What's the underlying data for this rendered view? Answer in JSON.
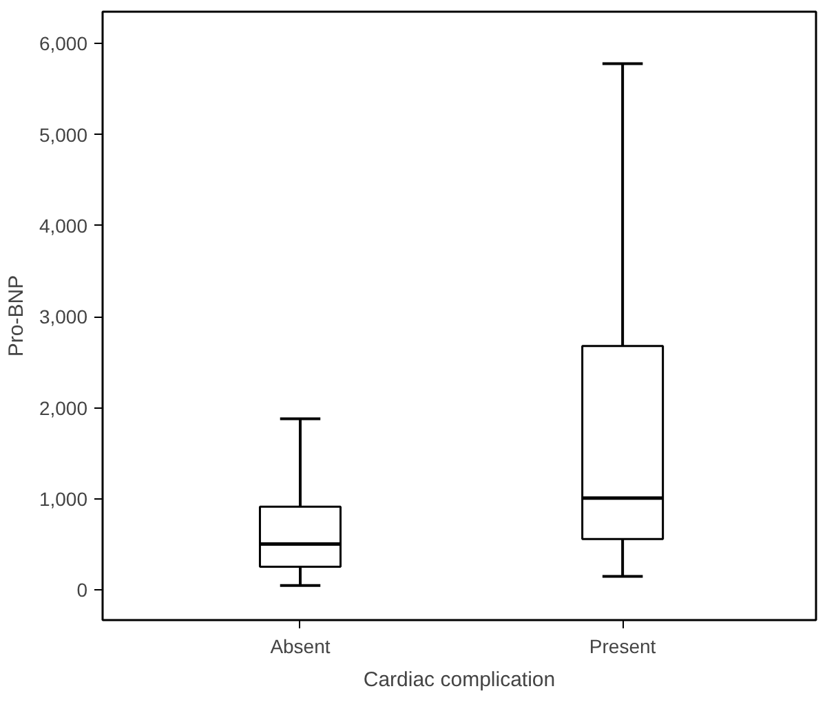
{
  "chart_data": {
    "type": "box",
    "xlabel": "Cardiac complication",
    "ylabel": "Pro-BNP",
    "categories": [
      "Absent",
      "Present"
    ],
    "boxes": [
      {
        "low": 50,
        "q1": 255,
        "median": 505,
        "q3": 915,
        "high": 1880
      },
      {
        "low": 150,
        "q1": 560,
        "median": 1010,
        "q3": 2680,
        "high": 5780
      }
    ],
    "ylim": [
      -330,
      6350
    ],
    "yticks": [
      {
        "value": 0,
        "label": "0"
      },
      {
        "value": 1000,
        "label": "1,000"
      },
      {
        "value": 2000,
        "label": "2,000"
      },
      {
        "value": 3000,
        "label": "3,000"
      },
      {
        "value": 4000,
        "label": "4,000"
      },
      {
        "value": 5000,
        "label": "5,000"
      },
      {
        "value": 6000,
        "label": "6,000"
      }
    ],
    "grid": false
  }
}
